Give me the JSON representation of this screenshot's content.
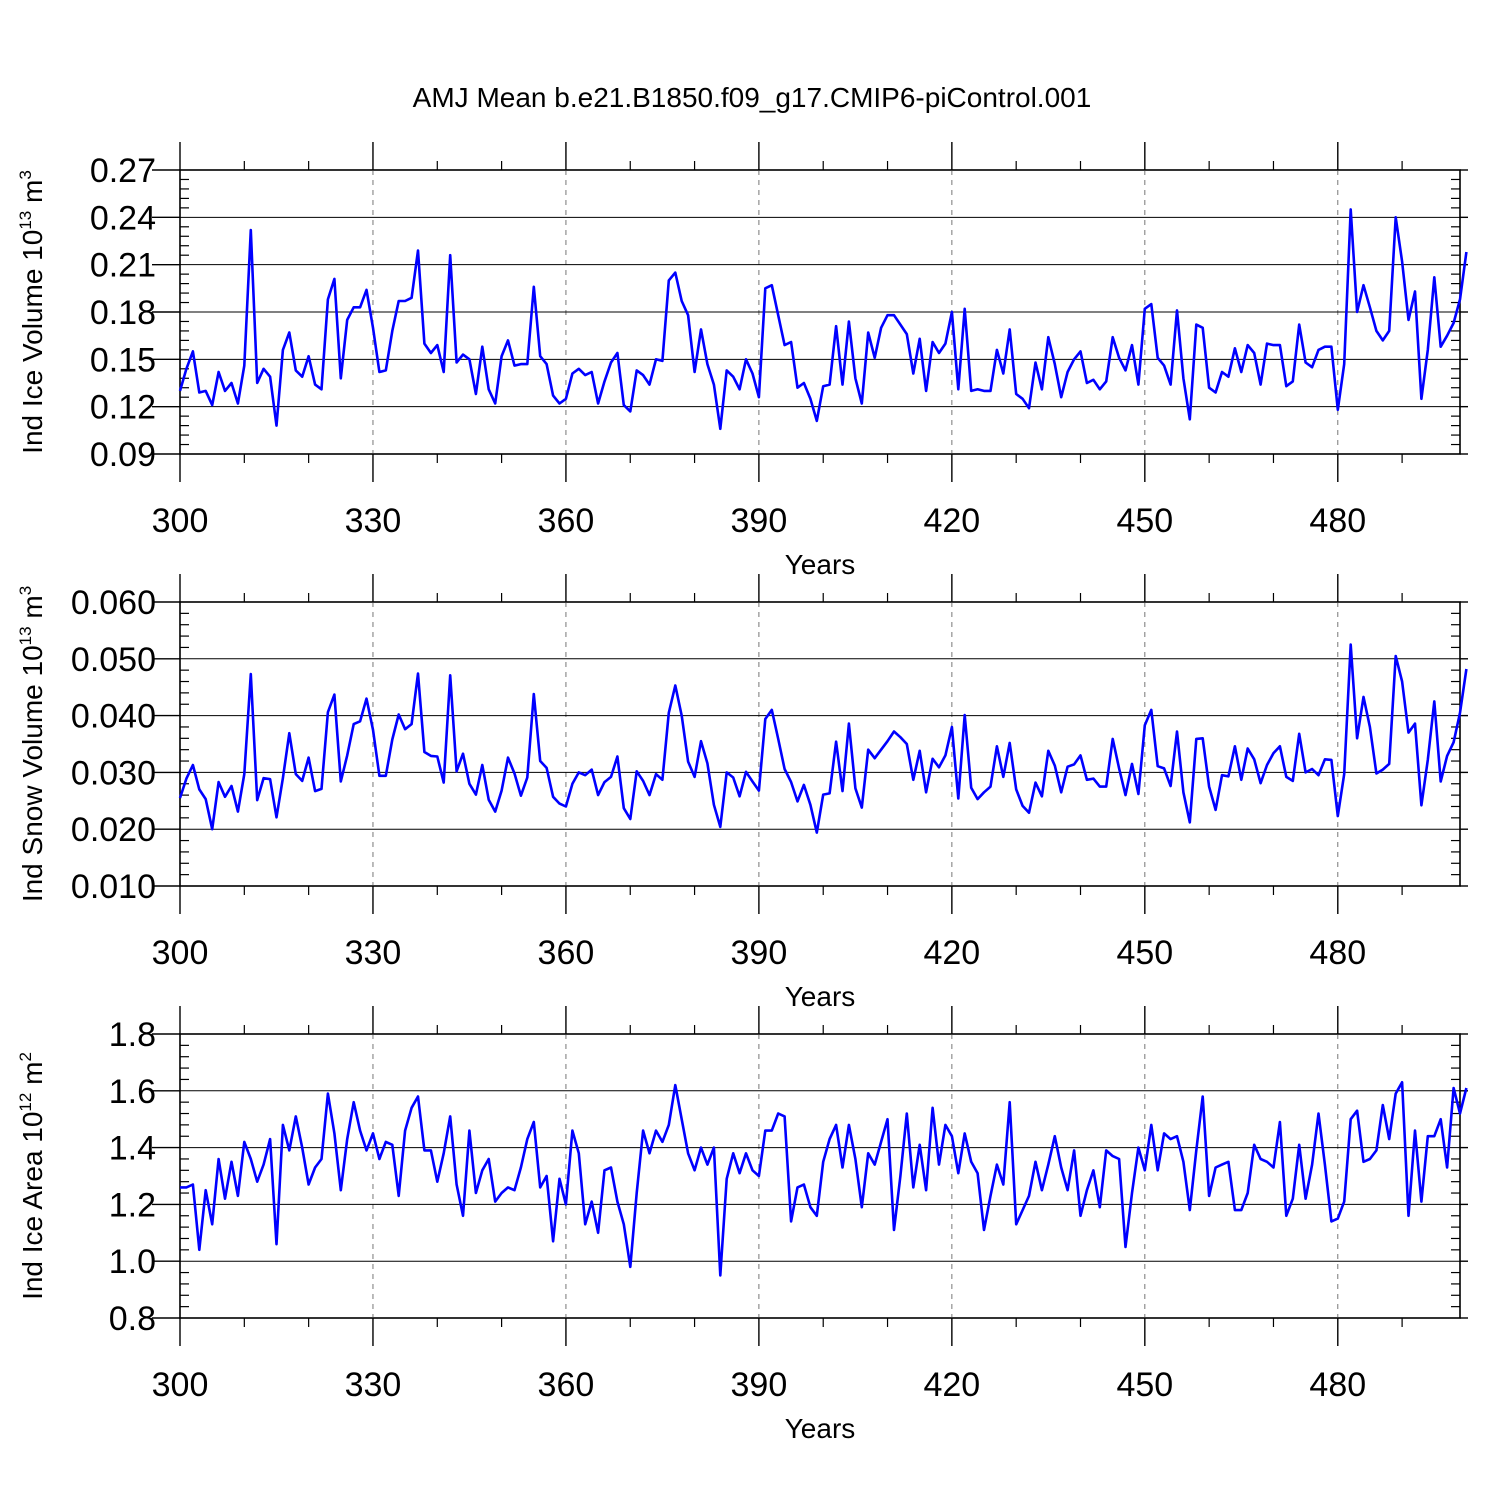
{
  "title": "AMJ Mean b.e21.B1850.f09_g17.CMIP6-piControl.001",
  "chart_data": [
    {
      "type": "line",
      "ylabel_main": "Ind Ice Volume 10",
      "ylabel_exp": "13",
      "ylabel_unit": " m",
      "ylabel_unit_exp": "3",
      "xlabel": "Years",
      "xlim": [
        300,
        499
      ],
      "ylim": [
        0.09,
        0.27
      ],
      "yticks": [
        0.09,
        0.12,
        0.15,
        0.18,
        0.21,
        0.24,
        0.27
      ],
      "ytick_labels": [
        "0.09",
        "0.12",
        "0.15",
        "0.18",
        "0.21",
        "0.24",
        "0.27"
      ],
      "xticks": [
        300,
        330,
        360,
        390,
        420,
        450,
        480
      ],
      "xtick_labels": [
        "300",
        "330",
        "360",
        "390",
        "420",
        "450",
        "480"
      ],
      "line_color": "#0000ff",
      "x_start": 300,
      "values": [
        0.13,
        0.144,
        0.155,
        0.129,
        0.13,
        0.121,
        0.142,
        0.13,
        0.135,
        0.122,
        0.146,
        0.232,
        0.135,
        0.144,
        0.139,
        0.108,
        0.156,
        0.167,
        0.143,
        0.139,
        0.152,
        0.134,
        0.131,
        0.188,
        0.201,
        0.138,
        0.175,
        0.183,
        0.183,
        0.194,
        0.17,
        0.142,
        0.143,
        0.168,
        0.187,
        0.187,
        0.189,
        0.219,
        0.16,
        0.154,
        0.159,
        0.142,
        0.216,
        0.148,
        0.153,
        0.15,
        0.128,
        0.158,
        0.131,
        0.122,
        0.152,
        0.162,
        0.146,
        0.147,
        0.147,
        0.196,
        0.152,
        0.147,
        0.127,
        0.122,
        0.125,
        0.141,
        0.144,
        0.14,
        0.142,
        0.122,
        0.136,
        0.148,
        0.154,
        0.121,
        0.117,
        0.143,
        0.14,
        0.134,
        0.15,
        0.149,
        0.2,
        0.205,
        0.187,
        0.178,
        0.142,
        0.169,
        0.147,
        0.134,
        0.106,
        0.143,
        0.139,
        0.131,
        0.15,
        0.141,
        0.126,
        0.195,
        0.197,
        0.178,
        0.159,
        0.161,
        0.132,
        0.135,
        0.125,
        0.111,
        0.133,
        0.134,
        0.171,
        0.134,
        0.174,
        0.138,
        0.122,
        0.167,
        0.151,
        0.17,
        0.178,
        0.178,
        0.172,
        0.166,
        0.141,
        0.163,
        0.13,
        0.161,
        0.154,
        0.16,
        0.18,
        0.131,
        0.182,
        0.13,
        0.131,
        0.13,
        0.13,
        0.156,
        0.141,
        0.169,
        0.128,
        0.125,
        0.119,
        0.148,
        0.131,
        0.164,
        0.147,
        0.126,
        0.142,
        0.15,
        0.155,
        0.135,
        0.137,
        0.131,
        0.136,
        0.164,
        0.151,
        0.143,
        0.159,
        0.134,
        0.182,
        0.185,
        0.151,
        0.146,
        0.134,
        0.181,
        0.138,
        0.112,
        0.172,
        0.17,
        0.132,
        0.129,
        0.142,
        0.139,
        0.157,
        0.142,
        0.159,
        0.154,
        0.134,
        0.16,
        0.159,
        0.159,
        0.133,
        0.136,
        0.172,
        0.148,
        0.145,
        0.156,
        0.158,
        0.158,
        0.118,
        0.147,
        0.245,
        0.18,
        0.197,
        0.183,
        0.168,
        0.162,
        0.168,
        0.24,
        0.212,
        0.175,
        0.193,
        0.125,
        0.156,
        0.202,
        0.158,
        0.165,
        0.173,
        0.188,
        0.218
      ]
    },
    {
      "type": "line",
      "ylabel_main": "Ind Snow Volume 10",
      "ylabel_exp": "13",
      "ylabel_unit": " m",
      "ylabel_unit_exp": "3",
      "xlabel": "Years",
      "xlim": [
        300,
        499
      ],
      "ylim": [
        0.01,
        0.06
      ],
      "yticks": [
        0.01,
        0.02,
        0.03,
        0.04,
        0.05,
        0.06
      ],
      "ytick_labels": [
        "0.010",
        "0.020",
        "0.030",
        "0.040",
        "0.050",
        "0.060"
      ],
      "xticks": [
        300,
        330,
        360,
        390,
        420,
        450,
        480
      ],
      "xtick_labels": [
        "300",
        "330",
        "360",
        "390",
        "420",
        "450",
        "480"
      ],
      "line_color": "#0000ff",
      "x_start": 300,
      "values": [
        0.0255,
        0.0289,
        0.0313,
        0.027,
        0.0253,
        0.02,
        0.0283,
        0.0257,
        0.0276,
        0.0231,
        0.0297,
        0.0473,
        0.0251,
        0.029,
        0.0288,
        0.0221,
        0.029,
        0.0369,
        0.0297,
        0.0285,
        0.0326,
        0.0267,
        0.0271,
        0.0406,
        0.0437,
        0.0284,
        0.033,
        0.0385,
        0.039,
        0.043,
        0.0375,
        0.0294,
        0.0294,
        0.0358,
        0.0402,
        0.0376,
        0.0385,
        0.0474,
        0.0336,
        0.0329,
        0.0328,
        0.0282,
        0.0471,
        0.0302,
        0.0333,
        0.028,
        0.0261,
        0.0313,
        0.0252,
        0.0231,
        0.0268,
        0.0326,
        0.0298,
        0.0259,
        0.0291,
        0.0438,
        0.032,
        0.0308,
        0.0257,
        0.0245,
        0.024,
        0.028,
        0.03,
        0.0295,
        0.0305,
        0.026,
        0.0283,
        0.0292,
        0.0328,
        0.0237,
        0.0218,
        0.0302,
        0.0285,
        0.026,
        0.0297,
        0.0287,
        0.0405,
        0.0453,
        0.04,
        0.0319,
        0.0292,
        0.0355,
        0.0316,
        0.0243,
        0.0204,
        0.03,
        0.0291,
        0.0258,
        0.0301,
        0.0284,
        0.0268,
        0.0394,
        0.041,
        0.0359,
        0.0306,
        0.0283,
        0.0249,
        0.0278,
        0.0243,
        0.0194,
        0.0261,
        0.0263,
        0.0354,
        0.0267,
        0.0386,
        0.0272,
        0.0238,
        0.034,
        0.0325,
        0.034,
        0.0355,
        0.0372,
        0.0362,
        0.035,
        0.0287,
        0.0338,
        0.0265,
        0.0324,
        0.0309,
        0.033,
        0.038,
        0.0254,
        0.0401,
        0.0273,
        0.0253,
        0.0265,
        0.0275,
        0.0346,
        0.0292,
        0.0352,
        0.027,
        0.0241,
        0.0229,
        0.0282,
        0.0258,
        0.0338,
        0.0312,
        0.0265,
        0.031,
        0.0314,
        0.033,
        0.0287,
        0.0289,
        0.0275,
        0.0275,
        0.0359,
        0.0307,
        0.026,
        0.0315,
        0.0262,
        0.0383,
        0.041,
        0.0311,
        0.0307,
        0.0276,
        0.0372,
        0.0265,
        0.0212,
        0.0359,
        0.036,
        0.0275,
        0.0234,
        0.0295,
        0.0293,
        0.0346,
        0.0287,
        0.0342,
        0.0323,
        0.0281,
        0.0313,
        0.0334,
        0.0346,
        0.0292,
        0.0285,
        0.0368,
        0.03,
        0.0306,
        0.0295,
        0.0323,
        0.0322,
        0.0223,
        0.0297,
        0.0525,
        0.036,
        0.0433,
        0.038,
        0.0298,
        0.0305,
        0.0315,
        0.0505,
        0.046,
        0.037,
        0.0386,
        0.0242,
        0.0322,
        0.0425,
        0.0284,
        0.0329,
        0.0353,
        0.0405,
        0.0482
      ]
    },
    {
      "type": "line",
      "ylabel_main": "Ind Ice Area 10",
      "ylabel_exp": "12",
      "ylabel_unit": " m",
      "ylabel_unit_exp": "2",
      "xlabel": "Years",
      "xlim": [
        300,
        499
      ],
      "ylim": [
        0.8,
        1.8
      ],
      "yticks": [
        0.8,
        1.0,
        1.2,
        1.4,
        1.6,
        1.8
      ],
      "ytick_labels": [
        "0.8",
        "1.0",
        "1.2",
        "1.4",
        "1.6",
        "1.8"
      ],
      "xticks": [
        300,
        330,
        360,
        390,
        420,
        450,
        480
      ],
      "xtick_labels": [
        "300",
        "330",
        "360",
        "390",
        "420",
        "450",
        "480"
      ],
      "line_color": "#0000ff",
      "x_start": 300,
      "values": [
        1.26,
        1.26,
        1.27,
        1.04,
        1.25,
        1.13,
        1.36,
        1.22,
        1.35,
        1.23,
        1.42,
        1.36,
        1.28,
        1.34,
        1.43,
        1.06,
        1.48,
        1.39,
        1.51,
        1.4,
        1.27,
        1.33,
        1.36,
        1.59,
        1.45,
        1.25,
        1.43,
        1.56,
        1.46,
        1.39,
        1.45,
        1.36,
        1.42,
        1.41,
        1.23,
        1.46,
        1.54,
        1.58,
        1.39,
        1.39,
        1.28,
        1.38,
        1.51,
        1.27,
        1.16,
        1.46,
        1.24,
        1.32,
        1.36,
        1.21,
        1.24,
        1.26,
        1.25,
        1.33,
        1.43,
        1.49,
        1.26,
        1.3,
        1.07,
        1.29,
        1.2,
        1.46,
        1.38,
        1.13,
        1.21,
        1.1,
        1.32,
        1.33,
        1.21,
        1.13,
        0.98,
        1.24,
        1.46,
        1.38,
        1.46,
        1.42,
        1.48,
        1.62,
        1.5,
        1.38,
        1.32,
        1.4,
        1.34,
        1.4,
        0.95,
        1.29,
        1.38,
        1.31,
        1.38,
        1.32,
        1.3,
        1.46,
        1.46,
        1.52,
        1.51,
        1.14,
        1.26,
        1.27,
        1.19,
        1.16,
        1.35,
        1.43,
        1.48,
        1.33,
        1.48,
        1.36,
        1.19,
        1.38,
        1.34,
        1.42,
        1.5,
        1.11,
        1.3,
        1.52,
        1.26,
        1.41,
        1.25,
        1.54,
        1.34,
        1.48,
        1.44,
        1.31,
        1.45,
        1.35,
        1.31,
        1.11,
        1.23,
        1.34,
        1.27,
        1.56,
        1.13,
        1.18,
        1.23,
        1.35,
        1.25,
        1.34,
        1.44,
        1.33,
        1.25,
        1.39,
        1.16,
        1.25,
        1.32,
        1.19,
        1.39,
        1.37,
        1.36,
        1.05,
        1.24,
        1.4,
        1.32,
        1.48,
        1.32,
        1.45,
        1.43,
        1.44,
        1.35,
        1.18,
        1.39,
        1.58,
        1.23,
        1.33,
        1.34,
        1.35,
        1.18,
        1.18,
        1.24,
        1.41,
        1.36,
        1.35,
        1.33,
        1.49,
        1.16,
        1.22,
        1.41,
        1.22,
        1.34,
        1.52,
        1.34,
        1.14,
        1.15,
        1.21,
        1.5,
        1.53,
        1.35,
        1.36,
        1.39,
        1.55,
        1.43,
        1.59,
        1.63,
        1.16,
        1.46,
        1.21,
        1.44,
        1.44,
        1.5,
        1.33,
        1.61,
        1.52,
        1.61
      ]
    }
  ]
}
